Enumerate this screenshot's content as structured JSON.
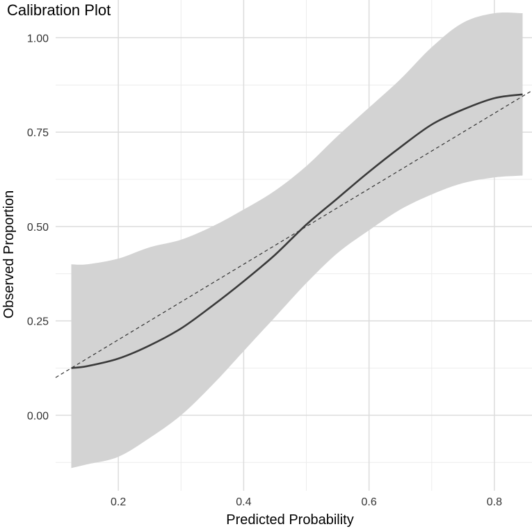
{
  "chart_data": {
    "type": "line",
    "title": "Calibration Plot",
    "xlabel": "Predicted Probability",
    "ylabel": "Observed Proportion",
    "xlim": [
      0.1,
      0.86
    ],
    "ylim": [
      -0.2,
      1.1
    ],
    "x_ticks": [
      0.2,
      0.4,
      0.6,
      0.8
    ],
    "x_tick_labels": [
      "0.2",
      "0.4",
      "0.6",
      "0.8"
    ],
    "y_ticks": [
      0.0,
      0.25,
      0.5,
      0.75,
      1.0
    ],
    "y_tick_labels": [
      "0.00",
      "0.25",
      "0.50",
      "0.75",
      "1.00"
    ],
    "grid": true,
    "series": [
      {
        "name": "calibration-curve",
        "style": "solid",
        "color": "#3a3a3a",
        "x": [
          0.125,
          0.15,
          0.2,
          0.25,
          0.3,
          0.35,
          0.4,
          0.45,
          0.5,
          0.55,
          0.6,
          0.65,
          0.7,
          0.75,
          0.8,
          0.845
        ],
        "y": [
          0.125,
          0.13,
          0.15,
          0.185,
          0.23,
          0.29,
          0.355,
          0.425,
          0.505,
          0.575,
          0.645,
          0.71,
          0.77,
          0.81,
          0.84,
          0.85
        ],
        "lower": [
          -0.14,
          -0.13,
          -0.11,
          -0.06,
          0.0,
          0.08,
          0.17,
          0.26,
          0.35,
          0.43,
          0.49,
          0.545,
          0.585,
          0.615,
          0.63,
          0.635
        ],
        "upper": [
          0.4,
          0.4,
          0.415,
          0.445,
          0.465,
          0.5,
          0.545,
          0.595,
          0.66,
          0.74,
          0.815,
          0.89,
          0.975,
          1.04,
          1.065,
          1.065
        ]
      },
      {
        "name": "perfect-calibration",
        "style": "dashed",
        "color": "#333333",
        "x": [
          0.1,
          0.86
        ],
        "y": [
          0.1,
          0.86
        ]
      }
    ],
    "band_color": "#d3d3d3"
  }
}
